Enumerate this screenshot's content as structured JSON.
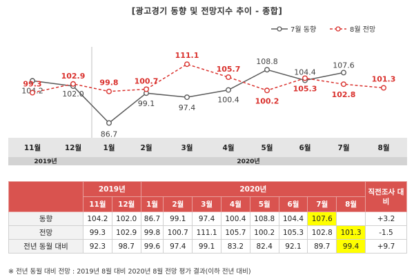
{
  "title": "[광고경기 동향 및 전망지수 추이 - 종합]",
  "legend": {
    "actual": "7월 동향",
    "forecast": "8월 전망"
  },
  "colors": {
    "actual": "#595959",
    "forecast": "#d9302c",
    "header_bg": "#d9534f",
    "highlight": "#ffff00"
  },
  "chart_data": {
    "type": "line",
    "title": "[광고경기 동향 및 전망지수 추이 - 종합]",
    "categories": [
      "11월",
      "12월",
      "1월",
      "2월",
      "3월",
      "4월",
      "5월",
      "6월",
      "7월",
      "8월"
    ],
    "year_groups": [
      {
        "label": "2019년",
        "span": [
          0,
          1
        ]
      },
      {
        "label": "2020년",
        "span": [
          2,
          9
        ]
      }
    ],
    "series": [
      {
        "name": "7월 동향",
        "values": [
          104.2,
          102.0,
          86.7,
          99.1,
          97.4,
          100.4,
          108.8,
          104.4,
          107.6,
          null
        ]
      },
      {
        "name": "8월 전망",
        "values": [
          99.3,
          102.9,
          99.8,
          100.7,
          111.1,
          105.7,
          100.2,
          105.3,
          102.8,
          101.3
        ]
      }
    ],
    "legend_position": "top-right",
    "grid": false
  },
  "table": {
    "corner_label": "",
    "year_2019": "2019년",
    "year_2020": "2020년",
    "prev_survey_label": "직전조사 대비",
    "months": [
      "11월",
      "12월",
      "1월",
      "2월",
      "3월",
      "4월",
      "5월",
      "6월",
      "7월",
      "8월"
    ],
    "rows": [
      {
        "label": "동향",
        "values": [
          "104.2",
          "102.0",
          "86.7",
          "99.1",
          "97.4",
          "100.4",
          "108.8",
          "104.4",
          "107.6",
          ""
        ],
        "diff": "+3.2",
        "highlight": [
          8
        ]
      },
      {
        "label": "전망",
        "values": [
          "99.3",
          "102.9",
          "99.8",
          "100.7",
          "111.1",
          "105.7",
          "100.2",
          "105.3",
          "102.8",
          "101.3"
        ],
        "diff": "-1.5",
        "highlight": [
          9
        ]
      },
      {
        "label": "전년 동월 대비",
        "values": [
          "92.3",
          "98.7",
          "99.6",
          "97.4",
          "99.1",
          "83.2",
          "82.4",
          "92.1",
          "89.7",
          "99.4"
        ],
        "diff": "+9.7",
        "highlight": [
          9
        ]
      }
    ]
  },
  "footnote": "※ 전년 동월 대비 전망 : 2019년 8월 대비 2020년 8월 전망 평가 결과(이하 전년 대비)"
}
